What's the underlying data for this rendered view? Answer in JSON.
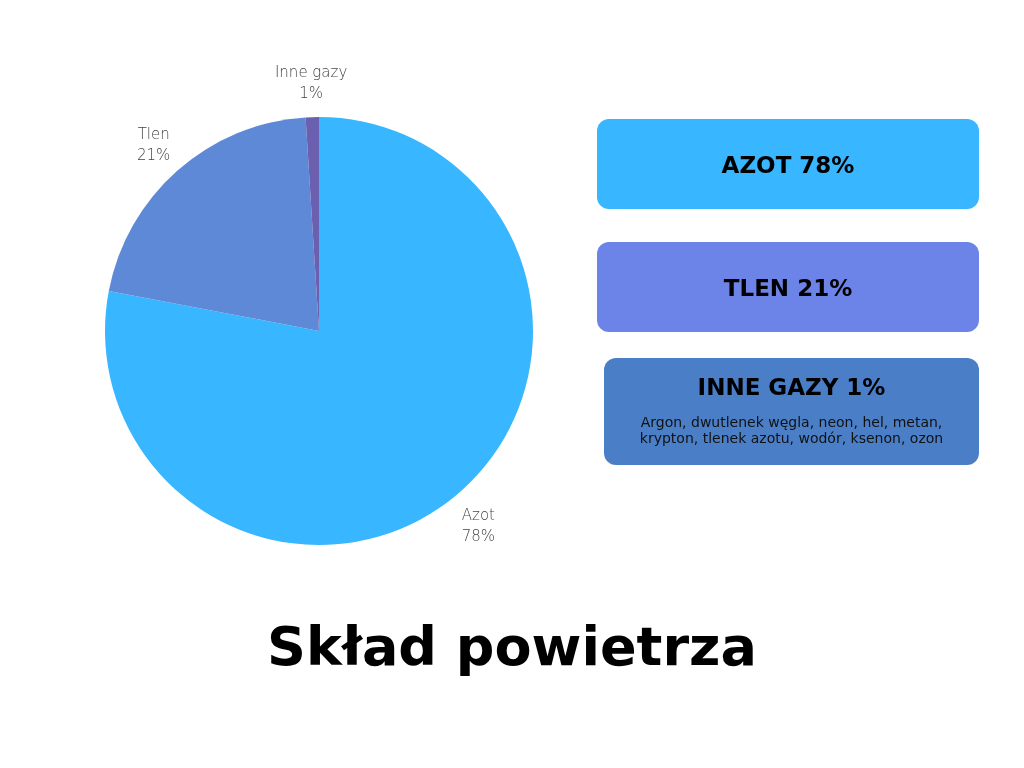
{
  "chart_data": [
    {
      "type": "pie",
      "title": "Skład powietrza",
      "categories": [
        "Azot",
        "Tlen",
        "Inne gazy"
      ],
      "values": [
        78,
        21,
        1
      ],
      "colors": [
        "#38b6ff",
        "#5e89d6",
        "#6b5fb0"
      ],
      "value_labels": [
        "78%",
        "21%",
        "1%"
      ]
    },
    {
      "type": "other",
      "annotations": [
        "AZOT 78%",
        "TLEN 21%",
        "INNE GAZY 1%",
        "Argon, dwutlenek węgla, neon, hel, metan, krypton, tlenek azotu, wodór, ksenon, ozon"
      ]
    }
  ]
}
